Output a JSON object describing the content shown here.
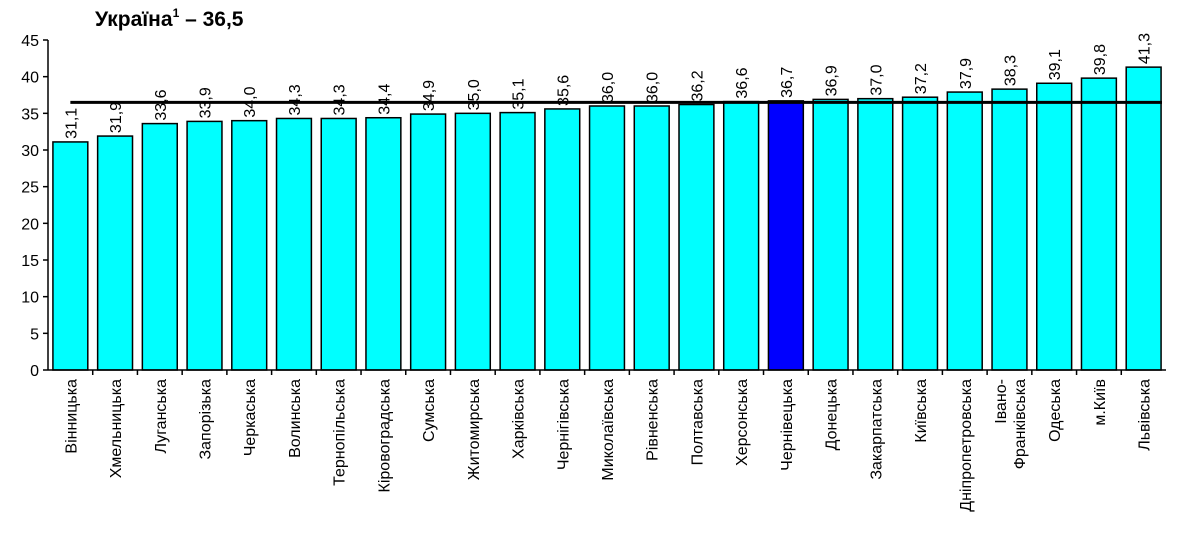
{
  "chart_data": {
    "type": "bar",
    "title_prefix": "Україна",
    "title_sup": "1",
    "title_suffix": " – 36,5",
    "reference_value": 36.5,
    "ylim": [
      0,
      45
    ],
    "yticks": [
      "0",
      "5",
      "10",
      "15",
      "20",
      "25",
      "30",
      "35",
      "40",
      "45"
    ],
    "grid": false,
    "categories": [
      "Вінницька",
      "Хмельницька",
      "Луганська",
      "Запорізька",
      "Черкаська",
      "Волинська",
      "Тернопільська",
      "Кіровоградська",
      "Сумська",
      "Житомирська",
      "Харківська",
      "Чернігівська",
      "Миколаївська",
      "Рівненська",
      "Полтавська",
      "Херсонська",
      "Чернівецька",
      "Донецька",
      "Закарпатська",
      "Київська",
      "Дніпропетровська",
      "Івано-\nФранківська",
      "Одеська",
      "м.Київ",
      "Львівська"
    ],
    "values": [
      31.1,
      31.9,
      33.6,
      33.9,
      34.0,
      34.3,
      34.3,
      34.4,
      34.9,
      35.0,
      35.1,
      35.6,
      36.0,
      36.0,
      36.2,
      36.6,
      36.7,
      36.9,
      37.0,
      37.2,
      37.9,
      38.3,
      39.1,
      39.8,
      41.3
    ],
    "value_labels": [
      "31,1",
      "31,9",
      "33,6",
      "33,9",
      "34,0",
      "34,3",
      "34,3",
      "34,4",
      "34,9",
      "35,0",
      "35,1",
      "35,6",
      "36,0",
      "36,0",
      "36,2",
      "36,6",
      "36,7",
      "36,9",
      "37,0",
      "37,2",
      "37,9",
      "38,3",
      "39,1",
      "39,8",
      "41,3"
    ],
    "highlight_index": 16,
    "colors": {
      "bar": "#00FFFF",
      "highlight": "#0000FF",
      "stroke": "#000000",
      "reference_line": "#000000"
    }
  }
}
